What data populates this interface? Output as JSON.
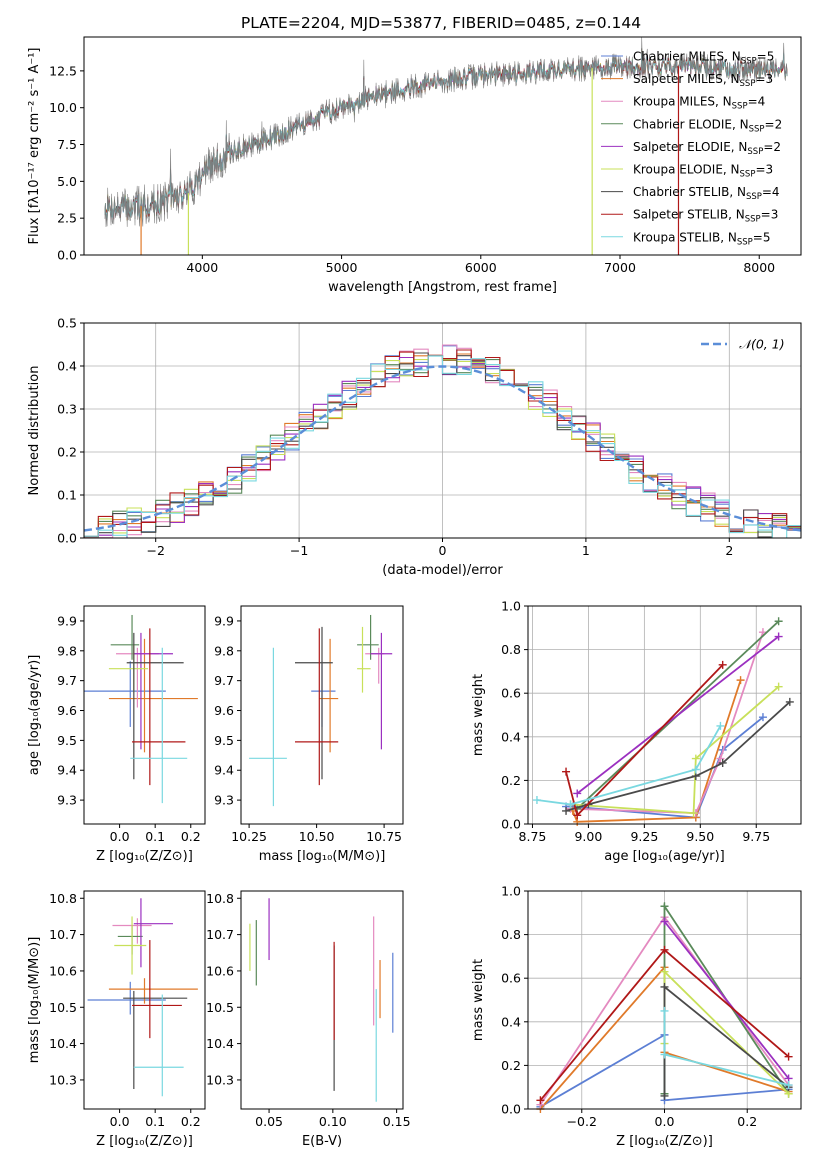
{
  "figure_title": "PLATE=2204, MJD=53877, FIBERID=0485, z=0.144",
  "colors": {
    "blue": "#5c7fd4",
    "orange": "#e07a2a",
    "pink": "#e48ac0",
    "green": "#5a8a5a",
    "purple": "#9b30c0",
    "lime": "#c8e05a",
    "dark": "#4a4a4a",
    "red": "#b01818",
    "cyan": "#7ad8e0",
    "gray": "#777777",
    "grid": "#b0b0b0",
    "normal": "#5b8ed8"
  },
  "chart_data": [
    {
      "id": "spectrum",
      "type": "line",
      "title": "PLATE=2204, MJD=53877, FIBERID=0485, z=0.144",
      "xlabel": "wavelength [Angstrom, rest frame]",
      "ylabel": "Flux [fλ10⁻¹⁷ erg cm⁻² s⁻¹ A⁻¹]",
      "xlim": [
        3150,
        8300
      ],
      "ylim": [
        0,
        14.8
      ],
      "xticks": [
        4000,
        5000,
        6000,
        7000,
        8000
      ],
      "yticks": [
        0.0,
        2.5,
        5.0,
        7.5,
        10.0,
        12.5
      ],
      "grid": false,
      "legend_position": "top-right",
      "legend": [
        {
          "label": "Chabrier MILES, N",
          "sub": "SSP",
          "suffix": "=5",
          "color": "blue"
        },
        {
          "label": "Salpeter MILES, N",
          "sub": "SSP",
          "suffix": "=3",
          "color": "orange"
        },
        {
          "label": "Kroupa MILES, N",
          "sub": "SSP",
          "suffix": "=4",
          "color": "pink"
        },
        {
          "label": "Chabrier ELODIE, N",
          "sub": "SSP",
          "suffix": "=2",
          "color": "green"
        },
        {
          "label": "Salpeter ELODIE, N",
          "sub": "SSP",
          "suffix": "=2",
          "color": "purple"
        },
        {
          "label": "Kroupa ELODIE, N",
          "sub": "SSP",
          "suffix": "=3",
          "color": "lime"
        },
        {
          "label": "Chabrier STELIB, N",
          "sub": "SSP",
          "suffix": "=4",
          "color": "dark"
        },
        {
          "label": "Salpeter STELIB, N",
          "sub": "SSP",
          "suffix": "=3",
          "color": "red"
        },
        {
          "label": "Kroupa STELIB, N",
          "sub": "SSP",
          "suffix": "=5",
          "color": "cyan"
        }
      ],
      "continuum": {
        "x": [
          3300,
          3500,
          3700,
          3900,
          4000,
          4200,
          4500,
          4800,
          5000,
          5200,
          5500,
          5800,
          6000,
          6300,
          6600,
          7000,
          7400,
          7800,
          8000,
          8200
        ],
        "y": [
          3.2,
          3.2,
          3.6,
          4.2,
          5.6,
          6.9,
          8.0,
          9.2,
          10.1,
          10.7,
          11.4,
          11.9,
          12.2,
          12.4,
          12.6,
          12.8,
          12.8,
          12.7,
          12.6,
          12.5
        ]
      },
      "noise": 0.9,
      "drops": [
        {
          "x": 3560,
          "color": "orange"
        },
        {
          "x": 3900,
          "color": "lime"
        },
        {
          "x": 6800,
          "color": "lime"
        },
        {
          "x": 7420,
          "color": "red"
        }
      ]
    },
    {
      "id": "residuals",
      "type": "histogram",
      "xlabel": "(data-model)/error",
      "ylabel": "Normed distribution",
      "xlim": [
        -2.5,
        2.5
      ],
      "ylim": [
        0,
        0.5
      ],
      "xticks": [
        -2,
        -1,
        0,
        1,
        2
      ],
      "yticks": [
        0.0,
        0.1,
        0.2,
        0.3,
        0.4,
        0.5
      ],
      "grid": true,
      "legend_position": "top-right",
      "legend": [
        {
          "label": "𝒩(0, 1)",
          "color": "normal",
          "dashed": true
        }
      ],
      "bin_width": 0.1,
      "bins_start": -2.5,
      "base_profile_sigma": 0.98,
      "series_colors": [
        "blue",
        "orange",
        "pink",
        "green",
        "purple",
        "lime",
        "dark",
        "red",
        "cyan"
      ]
    },
    {
      "id": "age-vs-Z",
      "type": "errorbar",
      "xlabel": "Z [log₁₀(Z/Z⊙)]",
      "ylabel": "age  [log₁₀(age/yr)]",
      "xlim": [
        -0.1,
        0.24
      ],
      "ylim": [
        9.22,
        9.95
      ],
      "xticks": [
        0.0,
        0.1,
        0.2
      ],
      "yticks": [
        9.3,
        9.4,
        9.5,
        9.6,
        9.7,
        9.8,
        9.9
      ],
      "grid": false,
      "points": [
        {
          "x": 0.03,
          "xerr": [
            0.13,
            0.1
          ],
          "y": 9.665,
          "yerr": [
            0.12,
            0.1
          ],
          "color": "blue"
        },
        {
          "x": 0.07,
          "xerr": [
            0.1,
            0.15
          ],
          "y": 9.64,
          "yerr": [
            0.18,
            0.2
          ],
          "color": "orange"
        },
        {
          "x": 0.05,
          "xerr": [
            0.06,
            0.06
          ],
          "y": 9.79,
          "yerr": [
            0.18,
            0.02
          ],
          "color": "pink"
        },
        {
          "x": 0.035,
          "xerr": [
            0.06,
            0.02
          ],
          "y": 9.82,
          "yerr": [
            0.05,
            0.1
          ],
          "color": "green"
        },
        {
          "x": 0.06,
          "xerr": [
            0.02,
            0.09
          ],
          "y": 9.79,
          "yerr": [
            0.32,
            0.07
          ],
          "color": "purple"
        },
        {
          "x": 0.04,
          "xerr": [
            0.07,
            0.04
          ],
          "y": 9.74,
          "yerr": [
            0.08,
            0.08
          ],
          "color": "lime"
        },
        {
          "x": 0.04,
          "xerr": [
            0.02,
            0.14
          ],
          "y": 9.76,
          "yerr": [
            0.39,
            0.1
          ],
          "color": "dark"
        },
        {
          "x": 0.085,
          "xerr": [
            0.05,
            0.1
          ],
          "y": 9.495,
          "yerr": [
            0.145,
            0.38
          ],
          "color": "red"
        },
        {
          "x": 0.12,
          "xerr": [
            0.09,
            0.07
          ],
          "y": 9.44,
          "yerr": [
            0.15,
            0.37
          ],
          "color": "cyan"
        }
      ]
    },
    {
      "id": "age-vs-mass",
      "type": "errorbar",
      "xlabel": "mass [log₁₀(M/M⊙)]",
      "ylabel": "",
      "xlim": [
        10.22,
        10.82
      ],
      "ylim": [
        9.22,
        9.95
      ],
      "xticks": [
        10.25,
        10.5,
        10.75
      ],
      "yticks": [
        9.3,
        9.4,
        9.5,
        9.6,
        9.7,
        9.8,
        9.9
      ],
      "grid": false,
      "points": [
        {
          "x": 10.52,
          "xerr": [
            0.04,
            0.05
          ],
          "y": 9.665,
          "yerr": [
            0.12,
            0.1
          ],
          "color": "blue"
        },
        {
          "x": 10.55,
          "xerr": [
            0.04,
            0.03
          ],
          "y": 9.64,
          "yerr": [
            0.18,
            0.2
          ],
          "color": "orange"
        },
        {
          "x": 10.73,
          "xerr": [
            0.05,
            0.02
          ],
          "y": 9.79,
          "yerr": [
            0.1,
            0.02
          ],
          "color": "pink"
        },
        {
          "x": 10.7,
          "xerr": [
            0.05,
            0.03
          ],
          "y": 9.82,
          "yerr": [
            0.05,
            0.1
          ],
          "color": "green"
        },
        {
          "x": 10.74,
          "xerr": [
            0.04,
            0.04
          ],
          "y": 9.79,
          "yerr": [
            0.32,
            0.07
          ],
          "color": "purple"
        },
        {
          "x": 10.67,
          "xerr": [
            0.02,
            0.03
          ],
          "y": 9.74,
          "yerr": [
            0.08,
            0.14
          ],
          "color": "lime"
        },
        {
          "x": 10.52,
          "xerr": [
            0.1,
            0.04
          ],
          "y": 9.76,
          "yerr": [
            0.39,
            0.12
          ],
          "color": "dark"
        },
        {
          "x": 10.51,
          "xerr": [
            0.09,
            0.07
          ],
          "y": 9.495,
          "yerr": [
            0.145,
            0.38
          ],
          "color": "red"
        },
        {
          "x": 10.34,
          "xerr": [
            0.09,
            0.05
          ],
          "y": 9.44,
          "yerr": [
            0.16,
            0.37
          ],
          "color": "cyan"
        }
      ]
    },
    {
      "id": "weight-vs-age",
      "type": "line",
      "xlabel": "age  [log₁₀(age/yr)]",
      "ylabel": "mass weight",
      "xlim": [
        8.73,
        9.95
      ],
      "ylim": [
        0,
        1.0
      ],
      "xticks": [
        8.75,
        9.0,
        9.25,
        9.5,
        9.75
      ],
      "yticks": [
        0.0,
        0.2,
        0.4,
        0.6,
        0.8,
        1.0
      ],
      "grid": true,
      "series": [
        {
          "color": "blue",
          "x": [
            8.9,
            8.93,
            9.48,
            9.6,
            9.78
          ],
          "y": [
            0.08,
            0.08,
            0.03,
            0.34,
            0.49
          ]
        },
        {
          "color": "orange",
          "x": [
            8.93,
            8.95,
            9.48,
            9.68
          ],
          "y": [
            0.06,
            0.01,
            0.03,
            0.66
          ]
        },
        {
          "color": "pink",
          "x": [
            8.92,
            9.48,
            9.59,
            9.78
          ],
          "y": [
            0.07,
            0.05,
            0.3,
            0.88
          ]
        },
        {
          "color": "green",
          "x": [
            8.95,
            9.85
          ],
          "y": [
            0.07,
            0.93
          ]
        },
        {
          "color": "purple",
          "x": [
            8.95,
            9.85
          ],
          "y": [
            0.14,
            0.86
          ]
        },
        {
          "color": "lime",
          "x": [
            8.92,
            9.47,
            9.48,
            9.85
          ],
          "y": [
            0.09,
            0.05,
            0.3,
            0.63
          ]
        },
        {
          "color": "dark",
          "x": [
            8.9,
            9.0,
            9.48,
            9.6,
            9.9
          ],
          "y": [
            0.06,
            0.09,
            0.22,
            0.28,
            0.56
          ]
        },
        {
          "color": "red",
          "x": [
            8.9,
            8.95,
            9.6
          ],
          "y": [
            0.24,
            0.04,
            0.73
          ]
        },
        {
          "color": "cyan",
          "x": [
            8.77,
            8.92,
            9.48,
            9.59
          ],
          "y": [
            0.11,
            0.09,
            0.25,
            0.45
          ]
        }
      ]
    },
    {
      "id": "mass-vs-Z",
      "type": "errorbar",
      "xlabel": "Z [log₁₀(Z/Z⊙)]",
      "ylabel": "mass [log₁₀(M/M⊙)]",
      "xlim": [
        -0.1,
        0.24
      ],
      "ylim": [
        10.22,
        10.82
      ],
      "xticks": [
        0.0,
        0.1,
        0.2
      ],
      "yticks": [
        10.3,
        10.4,
        10.5,
        10.6,
        10.7,
        10.8
      ],
      "grid": false,
      "points": [
        {
          "x": 0.03,
          "xerr": [
            0.12,
            0.1
          ],
          "y": 10.52,
          "yerr": [
            0.04,
            0.05
          ],
          "color": "blue"
        },
        {
          "x": 0.07,
          "xerr": [
            0.1,
            0.15
          ],
          "y": 10.55,
          "yerr": [
            0.04,
            0.03
          ],
          "color": "orange"
        },
        {
          "x": 0.05,
          "xerr": [
            0.07,
            0.04
          ],
          "y": 10.725,
          "yerr": [
            0.05,
            0.02
          ],
          "color": "pink"
        },
        {
          "x": 0.035,
          "xerr": [
            0.04,
            0.03
          ],
          "y": 10.695,
          "yerr": [
            0.05,
            0.03
          ],
          "color": "green"
        },
        {
          "x": 0.06,
          "xerr": [
            0.02,
            0.09
          ],
          "y": 10.73,
          "yerr": [
            0.12,
            0.07
          ],
          "color": "purple"
        },
        {
          "x": 0.035,
          "xerr": [
            0.05,
            0.04
          ],
          "y": 10.67,
          "yerr": [
            0.08,
            0.08
          ],
          "color": "lime"
        },
        {
          "x": 0.04,
          "xerr": [
            0.03,
            0.15
          ],
          "y": 10.525,
          "yerr": [
            0.25,
            0.02
          ],
          "color": "dark"
        },
        {
          "x": 0.085,
          "xerr": [
            0.05,
            0.09
          ],
          "y": 10.505,
          "yerr": [
            0.09,
            0.18
          ],
          "color": "red"
        },
        {
          "x": 0.12,
          "xerr": [
            0.08,
            0.06
          ],
          "y": 10.335,
          "yerr": [
            0.08,
            0.2
          ],
          "color": "cyan"
        }
      ]
    },
    {
      "id": "mass-vs-ebv",
      "type": "errorbar",
      "xlabel": "E(B-V)",
      "ylabel": "",
      "xlim": [
        0.028,
        0.155
      ],
      "ylim": [
        10.22,
        10.82
      ],
      "xticks": [
        0.05,
        0.1,
        0.15
      ],
      "yticks": [
        10.3,
        10.4,
        10.5,
        10.6,
        10.7,
        10.8
      ],
      "grid": false,
      "points": [
        {
          "x": 0.147,
          "xerr": [
            0,
            0
          ],
          "y": 10.52,
          "yerr": [
            0.09,
            0.13
          ],
          "color": "blue"
        },
        {
          "x": 0.137,
          "xerr": [
            0,
            0
          ],
          "y": 10.55,
          "yerr": [
            0.08,
            0.08
          ],
          "color": "orange"
        },
        {
          "x": 0.132,
          "xerr": [
            0,
            0
          ],
          "y": 10.64,
          "yerr": [
            0.19,
            0.11
          ],
          "color": "pink"
        },
        {
          "x": 0.04,
          "xerr": [
            0,
            0
          ],
          "y": 10.66,
          "yerr": [
            0.1,
            0.08
          ],
          "color": "green"
        },
        {
          "x": 0.05,
          "xerr": [
            0,
            0
          ],
          "y": 10.71,
          "yerr": [
            0.08,
            0.09
          ],
          "color": "purple"
        },
        {
          "x": 0.035,
          "xerr": [
            0,
            0
          ],
          "y": 10.67,
          "yerr": [
            0.07,
            0.06
          ],
          "color": "lime"
        },
        {
          "x": 0.101,
          "xerr": [
            0,
            0
          ],
          "y": 10.47,
          "yerr": [
            0.2,
            0.2
          ],
          "color": "dark"
        },
        {
          "x": 0.101,
          "xerr": [
            0,
            0
          ],
          "y": 10.55,
          "yerr": [
            0.14,
            0.13
          ],
          "color": "red"
        },
        {
          "x": 0.134,
          "xerr": [
            0,
            0
          ],
          "y": 10.34,
          "yerr": [
            0.1,
            0.21
          ],
          "color": "cyan"
        }
      ]
    },
    {
      "id": "weight-vs-Z",
      "type": "line",
      "xlabel": "Z [log₁₀(Z/Z⊙)]",
      "ylabel": "mass weight",
      "xlim": [
        -0.33,
        0.33
      ],
      "ylim": [
        0,
        1.0
      ],
      "xticks": [
        -0.2,
        0.0,
        0.2
      ],
      "yticks": [
        0.0,
        0.2,
        0.4,
        0.6,
        0.8,
        1.0
      ],
      "grid": true,
      "series": [
        {
          "color": "blue",
          "x": [
            -0.3,
            0.0,
            0.0,
            0.3
          ],
          "y": [
            0.01,
            0.34,
            0.04,
            0.09
          ]
        },
        {
          "color": "orange",
          "x": [
            -0.3,
            0.0,
            0.0,
            0.3
          ],
          "y": [
            0.0,
            0.65,
            0.26,
            0.08
          ]
        },
        {
          "color": "pink",
          "x": [
            -0.3,
            0.0,
            0.3
          ],
          "y": [
            0.02,
            0.88,
            0.11
          ]
        },
        {
          "color": "green",
          "x": [
            0.0,
            0.0,
            0.3
          ],
          "y": [
            0.07,
            0.93,
            0.07
          ]
        },
        {
          "color": "purple",
          "x": [
            0.0,
            0.3
          ],
          "y": [
            0.86,
            0.14
          ]
        },
        {
          "color": "lime",
          "x": [
            0.0,
            0.0,
            0.3
          ],
          "y": [
            0.3,
            0.63,
            0.07
          ]
        },
        {
          "color": "dark",
          "x": [
            0.0,
            0.0,
            0.3
          ],
          "y": [
            0.06,
            0.56,
            0.1
          ]
        },
        {
          "color": "red",
          "x": [
            -0.3,
            0.0,
            0.3
          ],
          "y": [
            0.04,
            0.73,
            0.24
          ]
        },
        {
          "color": "cyan",
          "x": [
            0.0,
            0.0,
            0.3
          ],
          "y": [
            0.45,
            0.25,
            0.11
          ]
        }
      ]
    }
  ]
}
